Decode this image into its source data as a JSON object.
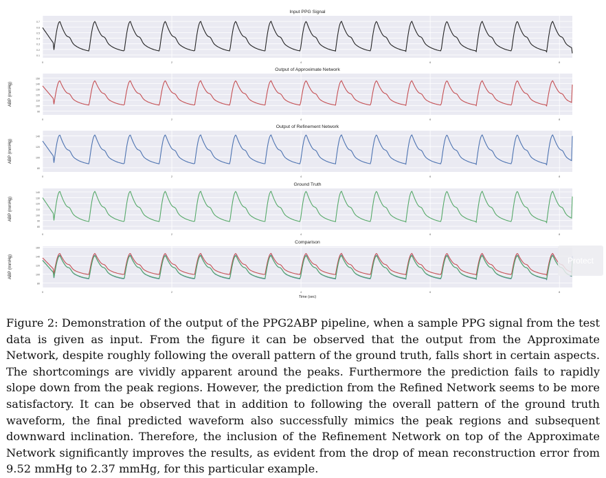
{
  "figure": {
    "caption": "Figure 2: Demonstration of the output of the PPG2ABP pipeline, when a sample PPG signal from the test data is given as input. From the figure it can be observed that the output from the Approximate Network, despite roughly following the overall pattern of the ground truth, falls short in certain aspects. The shortcomings are vividly apparent around the peaks. Furthermore the prediction fails to rapidly slope down from the peak regions. However, the prediction from the Refined Network seems to be more satisfactory. It can be observed that in addition to following the overall pattern of the ground truth waveform, the final predicted waveform also successfully mimics the peak regions and subsequent downward inclination. Therefore, the inclusion of the Refinement Network on top of the Approximate Network significantly improves the results, as evident from the drop of mean reconstruction error from 9.52 mmHg to 2.37 mmHg, for this particular example.",
    "protect_badge": "Protect",
    "colors": {
      "ppg": "#222222",
      "approx": "#c44e52",
      "refined": "#4c72b0",
      "truth": "#55a868",
      "panel_bg": "#eaeaf2",
      "grid": "#ffffff"
    }
  },
  "chart_data": [
    {
      "type": "line",
      "title": "Input PPG Signal",
      "xlabel": "",
      "ylabel": "",
      "ytick_labels": [
        "0.1",
        "0.2",
        "0.3",
        "0.4",
        "0.5",
        "0.6",
        "0.7"
      ],
      "xtick_labels": [
        "0",
        "2",
        "4",
        "6",
        "8"
      ],
      "ylim": [
        0.05,
        0.8
      ],
      "xlim": [
        0,
        8.2
      ],
      "series": [
        {
          "color": "ppg",
          "beats": 14,
          "period": 0.545,
          "phase": 0.17,
          "trough": 0.14,
          "peak": 0.7,
          "end": 0.13
        }
      ]
    },
    {
      "type": "line",
      "title": "Output of Approximate Network",
      "xlabel": "",
      "ylabel": "ABP (mmHg)",
      "ytick_labels": [
        "90",
        "100",
        "110",
        "120",
        "130",
        "140",
        "150"
      ],
      "xtick_labels": [
        "0",
        "2",
        "4",
        "6",
        "8"
      ],
      "ylim": [
        83,
        158
      ],
      "xlim": [
        0,
        8.2
      ],
      "series": [
        {
          "color": "approx",
          "beats": 14,
          "period": 0.545,
          "phase": 0.17,
          "trough": 98,
          "peak": 145,
          "end": 138
        }
      ]
    },
    {
      "type": "line",
      "title": "Output of Refinement Network",
      "xlabel": "",
      "ylabel": "ABP (mmHg)",
      "ytick_labels": [
        "80",
        "100",
        "120",
        "140"
      ],
      "xtick_labels": [
        "0",
        "2",
        "4",
        "6",
        "8"
      ],
      "ylim": [
        72,
        150
      ],
      "xlim": [
        0,
        8.2
      ],
      "series": [
        {
          "color": "refined",
          "beats": 14,
          "period": 0.545,
          "phase": 0.17,
          "trough": 84,
          "peak": 142,
          "end": 140
        }
      ]
    },
    {
      "type": "line",
      "title": "Ground Truth",
      "xlabel": "",
      "ylabel": "ABP (mmHg)",
      "ytick_labels": [
        "80",
        "90",
        "100",
        "110",
        "120",
        "130",
        "140"
      ],
      "xtick_labels": [
        "0",
        "2",
        "4",
        "6",
        "8"
      ],
      "ylim": [
        74,
        146
      ],
      "xlim": [
        0,
        8.2
      ],
      "series": [
        {
          "color": "truth",
          "beats": 14,
          "period": 0.545,
          "phase": 0.17,
          "trough": 85,
          "peak": 141,
          "end": 132
        }
      ]
    },
    {
      "type": "line",
      "title": "Comparison",
      "xlabel": "Time (sec)",
      "ylabel": "ABP (mmHg)",
      "ytick_labels": [
        "80",
        "100",
        "120",
        "140",
        "160"
      ],
      "xtick_labels": [
        "0",
        "2",
        "4",
        "6",
        "8"
      ],
      "ylim": [
        70,
        162
      ],
      "xlim": [
        0,
        8.2
      ],
      "series": [
        {
          "color": "approx",
          "beats": 14,
          "period": 0.545,
          "phase": 0.17,
          "trough": 96,
          "peak": 146,
          "end": 136
        },
        {
          "color": "refined",
          "beats": 14,
          "period": 0.545,
          "phase": 0.17,
          "trough": 86,
          "peak": 142,
          "end": 140
        },
        {
          "color": "truth",
          "beats": 14,
          "period": 0.545,
          "phase": 0.17,
          "trough": 87,
          "peak": 141,
          "end": 132
        }
      ]
    }
  ]
}
